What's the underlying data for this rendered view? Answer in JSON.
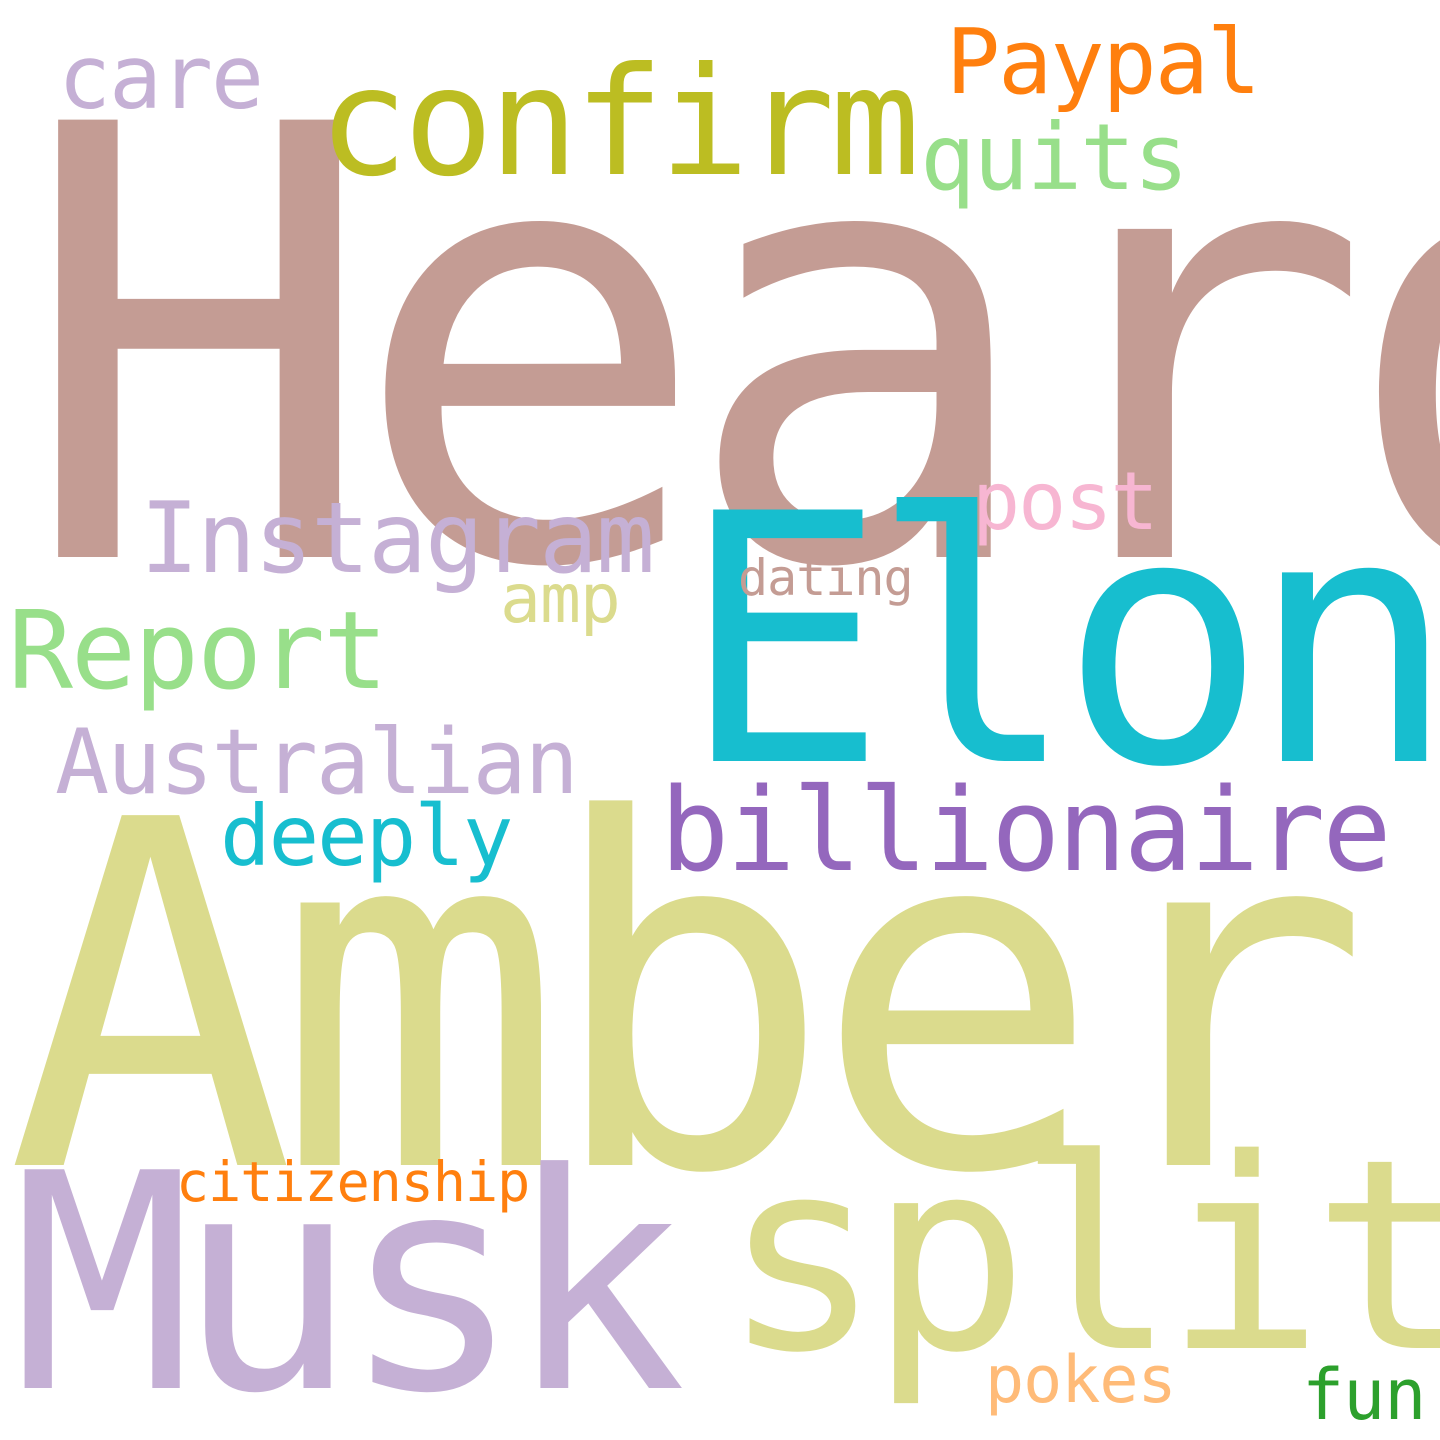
{
  "words": {
    "heard": {
      "text": "Heard",
      "color": "#C49C94"
    },
    "amber": {
      "text": "Amber",
      "color": "#DBDB8D"
    },
    "elon": {
      "text": "Elon",
      "color": "#17BECF"
    },
    "musk": {
      "text": "Musk",
      "color": "#C5B0D5"
    },
    "split": {
      "text": "split",
      "color": "#DBDB8D"
    },
    "confirm": {
      "text": "confirm",
      "color": "#BCBD22"
    },
    "billionaire": {
      "text": "billionaire",
      "color": "#9467BD"
    },
    "instagram": {
      "text": "Instagram",
      "color": "#C5B0D5"
    },
    "report": {
      "text": "Report",
      "color": "#98DF8A"
    },
    "australian": {
      "text": "Australian",
      "color": "#C5B0D5"
    },
    "paypal": {
      "text": "Paypal",
      "color": "#FF7F0E"
    },
    "quits": {
      "text": "quits",
      "color": "#98DF8A"
    },
    "care": {
      "text": "care",
      "color": "#C5B0D5"
    },
    "post": {
      "text": "post",
      "color": "#F7B6D2"
    },
    "deeply": {
      "text": "deeply",
      "color": "#17BECF"
    },
    "amp": {
      "text": "amp",
      "color": "#DBDB8D"
    },
    "dating": {
      "text": "dating",
      "color": "#C49C94"
    },
    "citizenship": {
      "text": "citizenship",
      "color": "#FF7F0E"
    },
    "pokes": {
      "text": "pokes",
      "color": "#FFBB78"
    },
    "fun": {
      "text": "fun",
      "color": "#2CA02C"
    }
  }
}
